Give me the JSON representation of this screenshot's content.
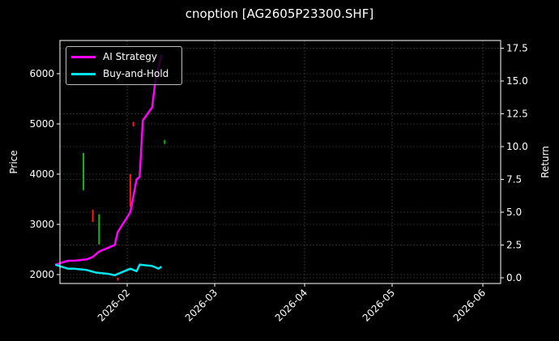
{
  "title": "cnoption [AG2605P23300.SHF]",
  "legend": [
    {
      "label": "AI Strategy",
      "color": "#ff00ff"
    },
    {
      "label": "Buy-and-Hold",
      "color": "#00e5ee"
    }
  ],
  "colors": {
    "up": "#00c000",
    "down": "#ff1a1a",
    "grid": "#555555",
    "axis": "#ffffff",
    "background": "#000000"
  },
  "chart_data": {
    "type": "line",
    "title": "cnoption [AG2605P23300.SHF]",
    "xlabel": "",
    "ylabel": "Price",
    "ylabel_right": "Return",
    "xticks": [
      "2026-02",
      "2026-03",
      "2026-04",
      "2026-05",
      "2026-06"
    ],
    "yticks_left": [
      2000,
      3000,
      4000,
      5000,
      6000
    ],
    "yticks_right": [
      "0.0",
      "2.5",
      "5.0",
      "7.5",
      "10.0",
      "12.5",
      "15.0",
      "17.5"
    ],
    "ylim_left": [
      1800,
      6650
    ],
    "ylim_right": [
      -0.5,
      18.0
    ],
    "grid": true,
    "legend_position": "upper left",
    "series": [
      {
        "name": "AI Strategy",
        "axis": "right",
        "x": [
          "2026-01-09",
          "2026-01-13",
          "2026-01-15",
          "2026-01-19",
          "2026-01-21",
          "2026-01-23",
          "2026-01-26",
          "2026-01-28",
          "2026-01-29",
          "2026-02-02",
          "2026-02-04",
          "2026-02-05",
          "2026-02-06",
          "2026-02-09",
          "2026-02-10",
          "2026-02-12"
        ],
        "values": [
          1.0,
          1.3,
          1.3,
          1.4,
          1.6,
          2.0,
          2.3,
          2.5,
          3.5,
          5.0,
          7.5,
          7.7,
          12.0,
          13.0,
          15.0,
          17.0
        ]
      },
      {
        "name": "Buy-and-Hold",
        "axis": "right",
        "x": [
          "2026-01-09",
          "2026-01-13",
          "2026-01-15",
          "2026-01-19",
          "2026-01-22",
          "2026-01-26",
          "2026-01-28",
          "2026-02-02",
          "2026-02-04",
          "2026-02-05",
          "2026-02-09",
          "2026-02-11",
          "2026-02-12"
        ],
        "values": [
          1.0,
          0.7,
          0.7,
          0.6,
          0.4,
          0.3,
          0.2,
          0.7,
          0.5,
          1.0,
          0.9,
          0.7,
          0.85
        ]
      }
    ],
    "candles_approx": [
      {
        "x": "2026-01-18",
        "high": 4420,
        "low": 3680,
        "color": "up"
      },
      {
        "x": "2026-01-21",
        "high": 3290,
        "low": 3050,
        "color": "down"
      },
      {
        "x": "2026-01-23",
        "high": 3200,
        "low": 2600,
        "color": "up"
      },
      {
        "x": "2026-01-29",
        "high": 1940,
        "low": 1880,
        "color": "down"
      },
      {
        "x": "2026-02-02",
        "high": 4000,
        "low": 3350,
        "color": "down"
      },
      {
        "x": "2026-02-03",
        "high": 5040,
        "low": 4950,
        "color": "down"
      },
      {
        "x": "2026-02-13",
        "high": 4680,
        "low": 4600,
        "color": "up"
      }
    ]
  }
}
